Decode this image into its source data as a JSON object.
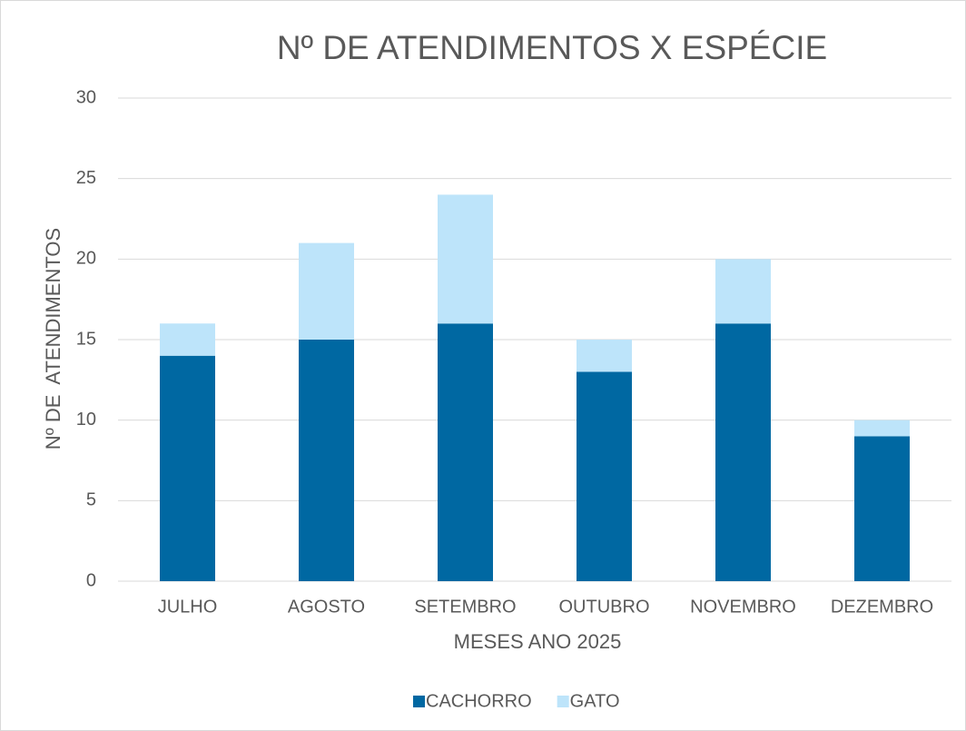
{
  "chart_data": {
    "type": "stacked_bar",
    "title": "Nº DE ATENDIMENTOS X ESPÉCIE",
    "x_label": "MESES ANO 2025",
    "y_label": "Nº DE  ATENDIMENTOS",
    "categories": [
      "JULHO",
      "AGOSTO",
      "SETEMBRO",
      "OUTUBRO",
      "NOVEMBRO",
      "DEZEMBRO"
    ],
    "series": [
      {
        "name": "CACHORRO",
        "color": "#0068a2",
        "values": [
          14,
          15,
          16,
          13,
          16,
          9
        ]
      },
      {
        "name": "GATO",
        "color": "#bde4fa",
        "values": [
          2,
          6,
          8,
          2,
          4,
          1
        ]
      }
    ],
    "ylim": [
      0,
      30
    ],
    "yticks": [
      0,
      5,
      10,
      15,
      20,
      25,
      30
    ],
    "grid": true,
    "legend": "bottom"
  }
}
